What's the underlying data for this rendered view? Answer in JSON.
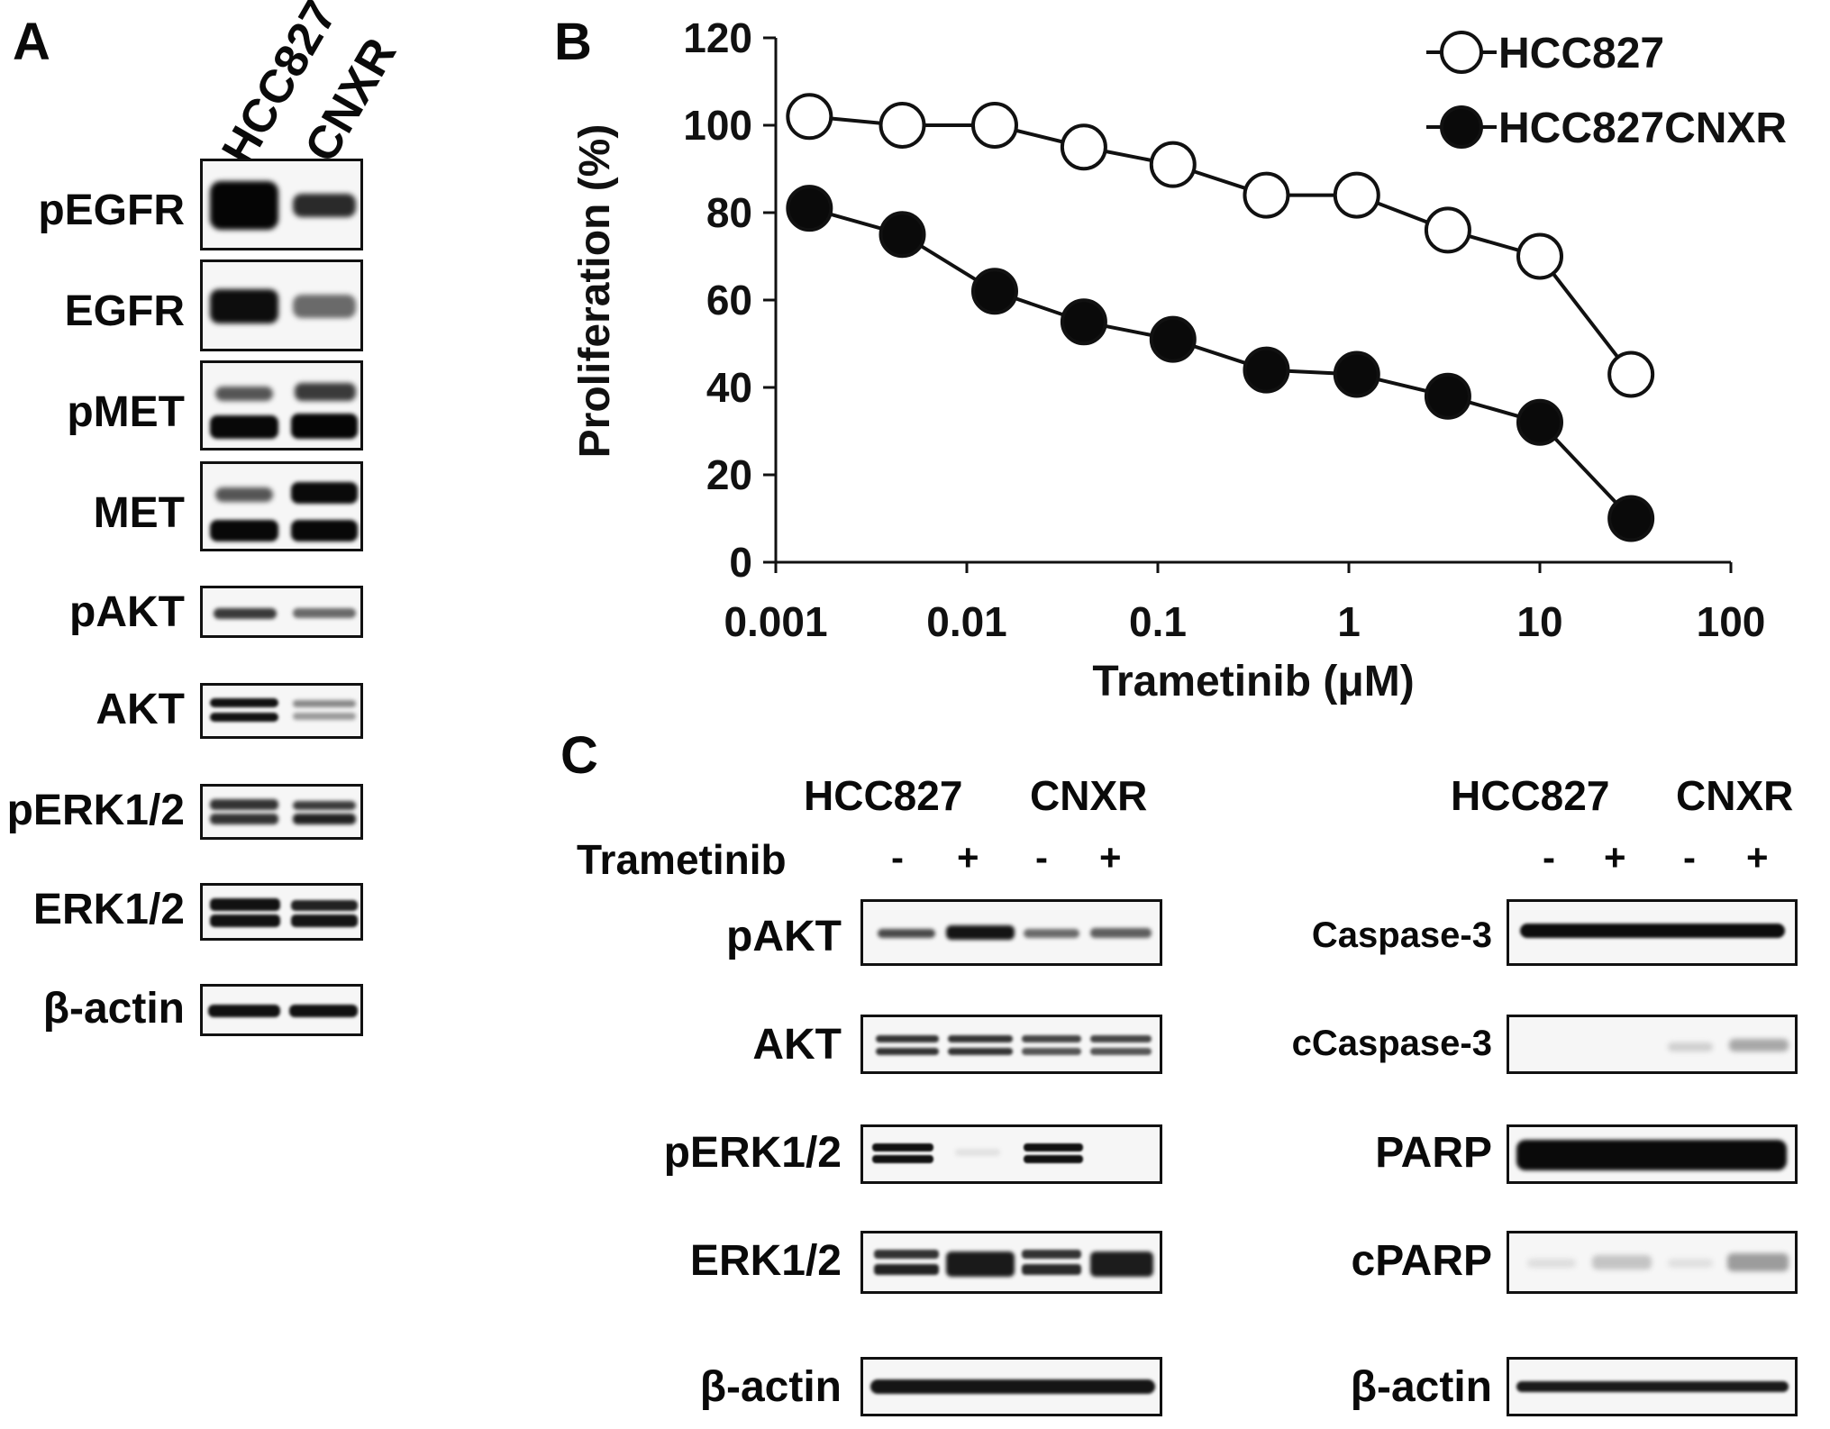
{
  "panel_a": {
    "letter": "A",
    "lanes": [
      "HCC827",
      "CNXR"
    ],
    "blots": [
      {
        "label": "pEGFR"
      },
      {
        "label": "EGFR"
      },
      {
        "label": "pMET"
      },
      {
        "label": "MET"
      },
      {
        "label": "pAKT"
      },
      {
        "label": "AKT"
      },
      {
        "label": "pERK1/2"
      },
      {
        "label": "ERK1/2"
      },
      {
        "label": "β-actin"
      }
    ]
  },
  "panel_b": {
    "letter": "B"
  },
  "chart_data": {
    "type": "scatter",
    "xlabel": "Trametinib (μM)",
    "ylabel": "Proliferation (%)",
    "x_scale": "log",
    "xlim": [
      0.001,
      100
    ],
    "ylim": [
      0,
      120
    ],
    "x_ticks": [
      "0.001",
      "0.01",
      "0.1",
      "1",
      "10",
      "100"
    ],
    "y_ticks": [
      "0",
      "20",
      "40",
      "60",
      "80",
      "100",
      "120"
    ],
    "legend_position": "top-right",
    "grid": false,
    "x": [
      0.0015,
      0.0046,
      0.014,
      0.041,
      0.12,
      0.37,
      1.1,
      3.3,
      10,
      30
    ],
    "series": [
      {
        "name": "HCC827",
        "marker": "open-circle",
        "values": [
          102,
          100,
          100,
          95,
          91,
          84,
          84,
          76,
          70,
          43
        ]
      },
      {
        "name": "HCC827CNXR",
        "marker": "filled-circle",
        "values": [
          81,
          75,
          62,
          55,
          51,
          44,
          43,
          38,
          32,
          10
        ]
      }
    ]
  },
  "panel_c": {
    "letter": "C",
    "left": {
      "cell_lines": [
        "HCC827",
        "CNXR"
      ],
      "treatment_label": "Trametinib",
      "signs": [
        "-",
        "+",
        "-",
        "+"
      ],
      "blots": [
        {
          "label": "pAKT"
        },
        {
          "label": "AKT"
        },
        {
          "label": "pERK1/2"
        },
        {
          "label": "ERK1/2"
        },
        {
          "label": "β-actin"
        }
      ]
    },
    "right": {
      "cell_lines": [
        "HCC827",
        "CNXR"
      ],
      "signs": [
        "-",
        "+",
        "-",
        "+"
      ],
      "blots": [
        {
          "label": "Caspase-3"
        },
        {
          "label": "cCaspase-3"
        },
        {
          "label": "PARP"
        },
        {
          "label": "cPARP"
        },
        {
          "label": "β-actin"
        }
      ]
    }
  }
}
